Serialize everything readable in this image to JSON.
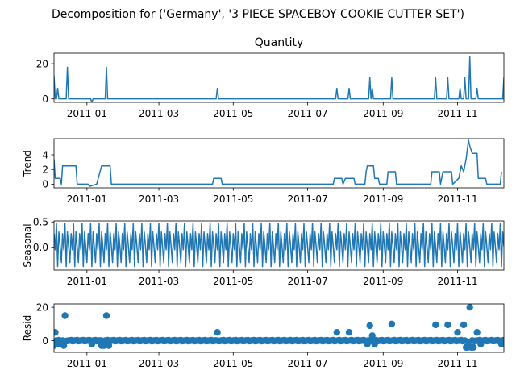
{
  "suptitle": "Decomposition for ('Germany', '3 PIECE SPACEBOY COOKIE CUTTER SET')",
  "colors": {
    "series": "#1f77b4",
    "axis": "#000000"
  },
  "chart_data": [
    {
      "type": "line",
      "title": "Quantity",
      "ylabel": "",
      "x_range": [
        "2010-12-05",
        "2011-12-09"
      ],
      "ylim": [
        -2,
        26
      ],
      "yticks": [
        0,
        20
      ],
      "xticks": [
        "2011-01",
        "2011-03",
        "2011-05",
        "2011-07",
        "2011-09",
        "2011-11"
      ],
      "baseline": 0,
      "series": [
        {
          "spikes": [
            {
              "x": "2010-12-05",
              "y": 13
            },
            {
              "x": "2010-12-08",
              "y": 6
            },
            {
              "x": "2010-12-16",
              "y": 18
            },
            {
              "x": "2011-01-05",
              "y": -2
            },
            {
              "x": "2011-01-17",
              "y": 18
            },
            {
              "x": "2011-04-18",
              "y": 6
            },
            {
              "x": "2011-07-25",
              "y": 6
            },
            {
              "x": "2011-08-04",
              "y": 6
            },
            {
              "x": "2011-08-21",
              "y": 12
            },
            {
              "x": "2011-08-23",
              "y": 6
            },
            {
              "x": "2011-09-08",
              "y": 12
            },
            {
              "x": "2011-10-14",
              "y": 12
            },
            {
              "x": "2011-10-24",
              "y": 12
            },
            {
              "x": "2011-11-03",
              "y": 6
            },
            {
              "x": "2011-11-07",
              "y": 12
            },
            {
              "x": "2011-11-11",
              "y": 24
            },
            {
              "x": "2011-11-17",
              "y": 6
            },
            {
              "x": "2011-12-09",
              "y": 12
            }
          ]
        }
      ]
    },
    {
      "type": "line",
      "title": "",
      "ylabel": "Trend",
      "x_range": [
        "2010-12-05",
        "2011-12-09"
      ],
      "ylim": [
        -0.5,
        6.2
      ],
      "yticks": [
        0,
        2,
        4
      ],
      "xticks": [
        "2011-01",
        "2011-03",
        "2011-05",
        "2011-07",
        "2011-09",
        "2011-11"
      ],
      "steps": [
        {
          "x": "2010-12-05",
          "y": 3.4
        },
        {
          "x": "2010-12-06",
          "y": 0.8
        },
        {
          "x": "2010-12-10",
          "y": 0.8
        },
        {
          "x": "2010-12-11",
          "y": 0
        },
        {
          "x": "2010-12-12",
          "y": 2.5
        },
        {
          "x": "2010-12-23",
          "y": 2.5
        },
        {
          "x": "2010-12-24",
          "y": 0
        },
        {
          "x": "2011-01-02",
          "y": 0
        },
        {
          "x": "2011-01-03",
          "y": -0.3
        },
        {
          "x": "2011-01-09",
          "y": 0
        },
        {
          "x": "2011-01-13",
          "y": 2.5
        },
        {
          "x": "2011-01-20",
          "y": 2.5
        },
        {
          "x": "2011-01-21",
          "y": 0
        },
        {
          "x": "2011-04-14",
          "y": 0
        },
        {
          "x": "2011-04-15",
          "y": 0.8
        },
        {
          "x": "2011-04-21",
          "y": 0.8
        },
        {
          "x": "2011-04-22",
          "y": 0
        },
        {
          "x": "2011-07-22",
          "y": 0
        },
        {
          "x": "2011-07-23",
          "y": 0.8
        },
        {
          "x": "2011-07-29",
          "y": 0.8
        },
        {
          "x": "2011-07-30",
          "y": 0
        },
        {
          "x": "2011-08-01",
          "y": 0.8
        },
        {
          "x": "2011-08-08",
          "y": 0.8
        },
        {
          "x": "2011-08-09",
          "y": 0
        },
        {
          "x": "2011-08-17",
          "y": 0
        },
        {
          "x": "2011-08-18",
          "y": 1.7
        },
        {
          "x": "2011-08-19",
          "y": 2.5
        },
        {
          "x": "2011-08-24",
          "y": 2.5
        },
        {
          "x": "2011-08-25",
          "y": 0.8
        },
        {
          "x": "2011-08-28",
          "y": 0.8
        },
        {
          "x": "2011-08-29",
          "y": 0
        },
        {
          "x": "2011-09-04",
          "y": 0
        },
        {
          "x": "2011-09-05",
          "y": 1.7
        },
        {
          "x": "2011-09-11",
          "y": 1.7
        },
        {
          "x": "2011-09-12",
          "y": 0
        },
        {
          "x": "2011-10-10",
          "y": 0
        },
        {
          "x": "2011-10-11",
          "y": 1.7
        },
        {
          "x": "2011-10-17",
          "y": 1.7
        },
        {
          "x": "2011-10-18",
          "y": 0
        },
        {
          "x": "2011-10-20",
          "y": 1.7
        },
        {
          "x": "2011-10-27",
          "y": 1.7
        },
        {
          "x": "2011-10-28",
          "y": 0
        },
        {
          "x": "2011-11-02",
          "y": 0.8
        },
        {
          "x": "2011-11-04",
          "y": 2.5
        },
        {
          "x": "2011-11-06",
          "y": 1.7
        },
        {
          "x": "2011-11-08",
          "y": 3.4
        },
        {
          "x": "2011-11-10",
          "y": 6.0
        },
        {
          "x": "2011-11-11",
          "y": 5.2
        },
        {
          "x": "2011-11-13",
          "y": 4.2
        },
        {
          "x": "2011-11-17",
          "y": 4.2
        },
        {
          "x": "2011-11-18",
          "y": 0.8
        },
        {
          "x": "2011-11-24",
          "y": 0.8
        },
        {
          "x": "2011-11-25",
          "y": 0
        },
        {
          "x": "2011-12-06",
          "y": 0
        },
        {
          "x": "2011-12-07",
          "y": 1.7
        }
      ]
    },
    {
      "type": "line",
      "title": "",
      "ylabel": "Seasonal",
      "x_range": [
        "2010-12-05",
        "2011-12-09"
      ],
      "ylim": [
        -0.45,
        0.52
      ],
      "yticks": [
        0.0,
        0.5
      ],
      "ytick_labels": [
        "0.0",
        "0.5"
      ],
      "xticks": [
        "2011-01",
        "2011-03",
        "2011-05",
        "2011-07",
        "2011-09",
        "2011-11"
      ],
      "period_days": 7,
      "weekly_pattern": [
        0.27,
        -0.05,
        0.47,
        -0.38,
        0.3,
        0.02,
        -0.3
      ]
    },
    {
      "type": "scatter",
      "title": "",
      "ylabel": "Resid",
      "x_range": [
        "2010-12-05",
        "2011-12-09"
      ],
      "ylim": [
        -7,
        22
      ],
      "yticks": [
        0,
        20
      ],
      "xticks": [
        "2011-01",
        "2011-03",
        "2011-05",
        "2011-07",
        "2011-09",
        "2011-11"
      ],
      "baseline": 0,
      "outliers": [
        {
          "x": "2010-12-05",
          "y": -3
        },
        {
          "x": "2010-12-06",
          "y": 5
        },
        {
          "x": "2010-12-08",
          "y": -2
        },
        {
          "x": "2010-12-10",
          "y": -1
        },
        {
          "x": "2010-12-13",
          "y": -3
        },
        {
          "x": "2010-12-14",
          "y": 15
        },
        {
          "x": "2011-01-05",
          "y": -2
        },
        {
          "x": "2011-01-13",
          "y": -3
        },
        {
          "x": "2011-01-15",
          "y": -3
        },
        {
          "x": "2011-01-17",
          "y": 15
        },
        {
          "x": "2011-01-19",
          "y": -3
        },
        {
          "x": "2011-04-18",
          "y": 5
        },
        {
          "x": "2011-07-25",
          "y": 5
        },
        {
          "x": "2011-08-04",
          "y": 5
        },
        {
          "x": "2011-08-19",
          "y": -2
        },
        {
          "x": "2011-08-21",
          "y": 9
        },
        {
          "x": "2011-08-23",
          "y": 3
        },
        {
          "x": "2011-08-25",
          "y": -2
        },
        {
          "x": "2011-09-08",
          "y": 10
        },
        {
          "x": "2011-10-14",
          "y": 9.5
        },
        {
          "x": "2011-10-24",
          "y": 9.5
        },
        {
          "x": "2011-11-01",
          "y": 5
        },
        {
          "x": "2011-11-06",
          "y": 9.5
        },
        {
          "x": "2011-11-08",
          "y": -4
        },
        {
          "x": "2011-11-09",
          "y": -4
        },
        {
          "x": "2011-11-10",
          "y": -1
        },
        {
          "x": "2011-11-11",
          "y": 20
        },
        {
          "x": "2011-11-12",
          "y": -4
        },
        {
          "x": "2011-11-14",
          "y": -4
        },
        {
          "x": "2011-11-17",
          "y": 5
        },
        {
          "x": "2011-11-20",
          "y": -2
        },
        {
          "x": "2011-12-07",
          "y": -2
        }
      ]
    }
  ]
}
